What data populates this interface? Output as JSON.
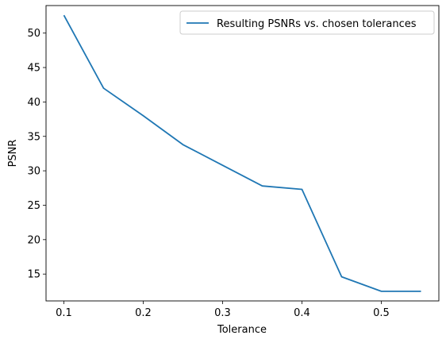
{
  "chart_data": {
    "type": "line",
    "title": "",
    "xlabel": "Tolerance",
    "ylabel": "PSNR",
    "xlim": [
      0.0775,
      0.5725
    ],
    "ylim": [
      11.1,
      54.0
    ],
    "xticks": [
      0.1,
      0.2,
      0.3,
      0.4,
      0.5
    ],
    "xtick_labels": [
      "0.1",
      "0.2",
      "0.3",
      "0.4",
      "0.5"
    ],
    "yticks": [
      15,
      20,
      25,
      30,
      35,
      40,
      45,
      50
    ],
    "ytick_labels": [
      "15",
      "20",
      "25",
      "30",
      "35",
      "40",
      "45",
      "50"
    ],
    "grid": false,
    "legend_position": "top-right",
    "series": [
      {
        "name": "Resulting PSNRs vs. chosen tolerances",
        "color": "#1f77b4",
        "x": [
          0.1,
          0.15,
          0.2,
          0.25,
          0.3,
          0.35,
          0.4,
          0.45,
          0.5,
          0.55
        ],
        "y": [
          52.6,
          42.0,
          38.0,
          33.8,
          30.8,
          27.8,
          27.3,
          14.6,
          12.5,
          12.5
        ]
      }
    ]
  }
}
